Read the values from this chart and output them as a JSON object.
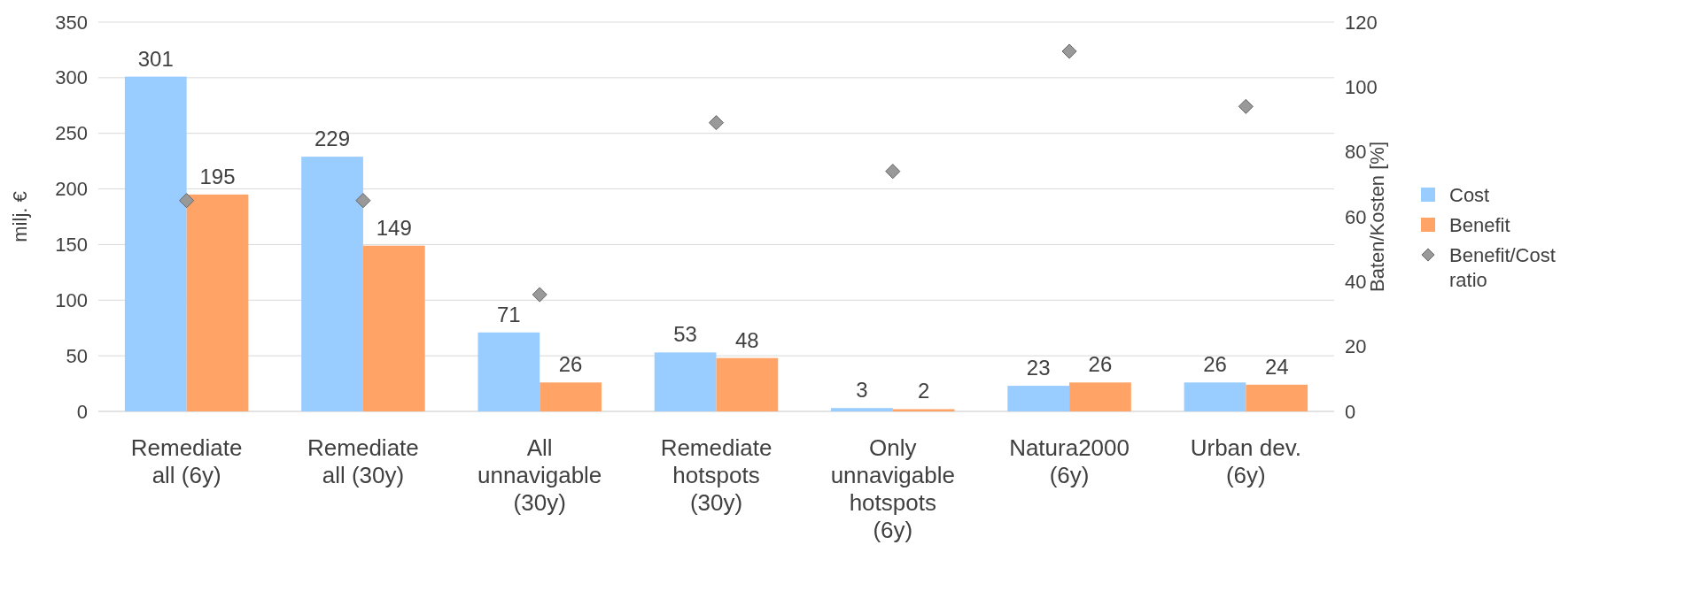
{
  "chart_data": {
    "type": "bar",
    "ylabel": "milj. €",
    "y2label": "Baten/Kosten [%]",
    "categories": [
      "Remediate all (6y)",
      "Remediate all (30y)",
      "All unnavigable (30y)",
      "Remediate hotspots (30y)",
      "Only unnavigable hotspots (6y)",
      "Natura2000 (6y)",
      "Urban dev. (6y)"
    ],
    "series": [
      {
        "name": "Cost",
        "color": "#99ccff",
        "values": [
          301,
          229,
          71,
          53,
          3,
          23,
          26
        ],
        "value_labels": [
          "301",
          "229",
          "71",
          "53",
          "3",
          "23",
          "26"
        ]
      },
      {
        "name": "Benefit",
        "color": "#ffa466",
        "values": [
          195,
          149,
          26,
          48,
          2,
          26,
          24
        ],
        "value_labels": [
          "195",
          "149",
          "26",
          "48",
          "2",
          "26",
          "24"
        ]
      },
      {
        "name": "Benefit/Cost ratio",
        "type": "scatter",
        "axis": "y2",
        "marker": "diamond",
        "color": "#999999",
        "values": [
          65,
          65,
          36,
          89,
          74,
          111,
          94
        ]
      }
    ],
    "ylim": [
      0,
      350
    ],
    "yticks": [
      0,
      50,
      100,
      150,
      200,
      250,
      300,
      350
    ],
    "y2lim": [
      0,
      120
    ],
    "y2ticks": [
      0,
      20,
      40,
      60,
      80,
      100,
      120
    ],
    "grid": "y",
    "legend": "right"
  }
}
